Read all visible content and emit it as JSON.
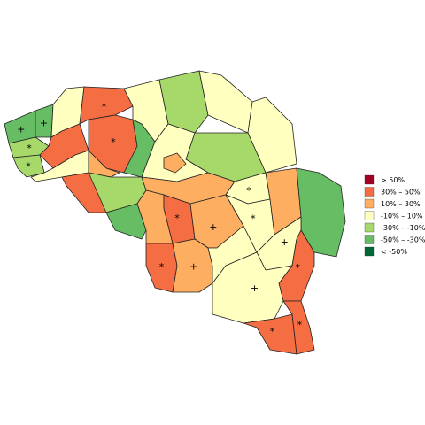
{
  "map": {
    "legend": [
      {
        "label": ">  50%",
        "color": "#a50026"
      },
      {
        "label": "30%  –  50%",
        "color": "#f46d43"
      },
      {
        "label": "10%  –  30%",
        "color": "#fdae61"
      },
      {
        "label": "-10%  –  10%",
        "color": "#ffffbf"
      },
      {
        "label": "-30%  –  -10%",
        "color": "#a6d96a"
      },
      {
        "label": "-50%  –  -30%",
        "color": "#66bd63"
      },
      {
        "label": "< -50%",
        "color": "#006837"
      }
    ],
    "regions": [
      {
        "color": "#66bd63",
        "marker": "+"
      },
      {
        "color": "#66bd63",
        "marker": "+"
      },
      {
        "color": "#a6d96a",
        "marker": "*"
      },
      {
        "color": "#a6d96a",
        "marker": "*"
      },
      {
        "color": "#ffffbf"
      },
      {
        "color": "#f46d43"
      },
      {
        "color": "#ffffbf"
      },
      {
        "color": "#f46d43",
        "marker": "*"
      },
      {
        "color": "#f46d43",
        "marker": "*"
      },
      {
        "color": "#fdae61"
      },
      {
        "color": "#66bd63"
      },
      {
        "color": "#ffffbf"
      },
      {
        "color": "#a6d96a"
      },
      {
        "color": "#ffffbf"
      },
      {
        "color": "#ffffbf"
      },
      {
        "color": "#a6d96a"
      },
      {
        "color": "#ffffbf"
      },
      {
        "color": "#fdae61"
      },
      {
        "color": "#f46d43"
      },
      {
        "color": "#a6d96a"
      },
      {
        "color": "#66bd63"
      },
      {
        "color": "#fdae61"
      },
      {
        "color": "#fdae61"
      },
      {
        "color": "#f46d43",
        "marker": "*"
      },
      {
        "color": "#fdae61",
        "marker": "+"
      },
      {
        "color": "#f46d43",
        "marker": "*"
      },
      {
        "color": "#fdae61",
        "marker": "+"
      },
      {
        "color": "#ffffbf"
      },
      {
        "color": "#ffffbf",
        "marker": "*"
      },
      {
        "color": "#ffffbf",
        "marker": "*"
      },
      {
        "color": "#fdae61"
      },
      {
        "color": "#66bd63"
      },
      {
        "color": "#ffffbf",
        "marker": "+"
      },
      {
        "color": "#f46d43",
        "marker": "*"
      },
      {
        "color": "#ffffbf",
        "marker": "+"
      },
      {
        "color": "#f46d43",
        "marker": "*"
      },
      {
        "color": "#f46d43",
        "marker": "*"
      }
    ]
  }
}
